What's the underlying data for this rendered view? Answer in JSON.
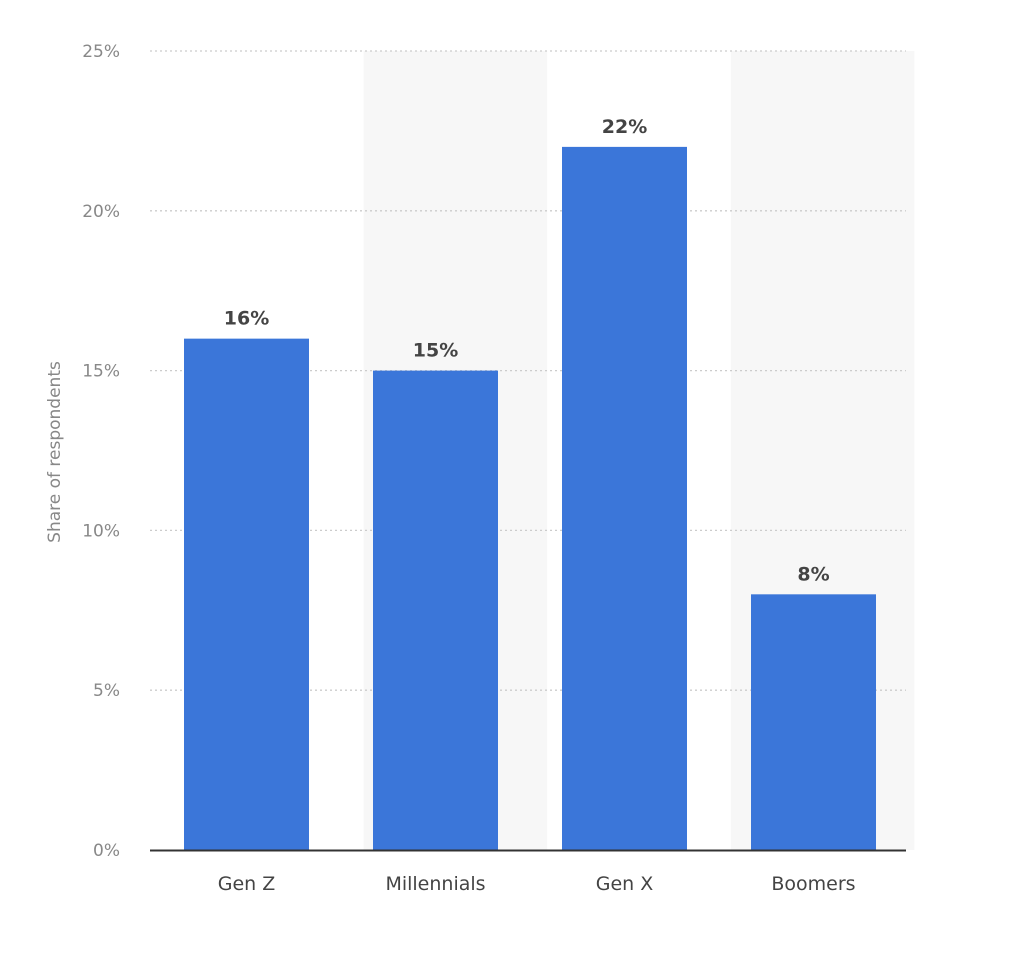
{
  "chart_data": {
    "type": "bar",
    "title": "",
    "xlabel": "",
    "ylabel": "Share of respondents",
    "categories": [
      "Gen Z",
      "Millennials",
      "Gen X",
      "Boomers"
    ],
    "values": [
      16,
      15,
      22,
      8
    ],
    "data_labels": [
      "16%",
      "15%",
      "22%",
      "8%"
    ],
    "ylim": [
      0,
      25
    ],
    "yticks": [
      0,
      5,
      10,
      15,
      20,
      25
    ],
    "ytick_labels": [
      "0%",
      "5%",
      "10%",
      "15%",
      "20%",
      "25%"
    ],
    "grid": true,
    "legend": "none",
    "colors": {
      "bar": "#3b76d9",
      "band": "#f7f7f7",
      "grid": "#cccccc",
      "axis": "#333333"
    }
  }
}
